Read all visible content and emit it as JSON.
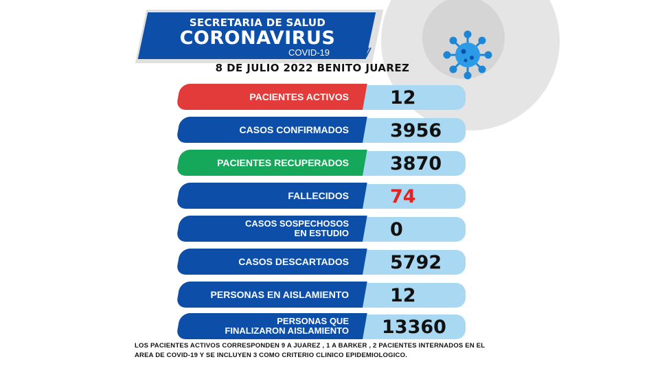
{
  "header": {
    "line1": "SECRETARIA DE SALUD",
    "line2": "CORONAVIRUS",
    "line3": "COVID-19",
    "stripes": "/////////",
    "date": "8  DE JULIO  2022  BENITO JUAREZ"
  },
  "stats": [
    {
      "label": "PACIENTES ACTIVOS",
      "value": "12"
    },
    {
      "label": "CASOS CONFIRMADOS",
      "value": "3956"
    },
    {
      "label": "PACIENTES RECUPERADOS",
      "value": "3870"
    },
    {
      "label": "FALLECIDOS",
      "value": "74"
    },
    {
      "label_line1": "CASOS SOSPECHOSOS",
      "label_line2": "EN ESTUDIO",
      "value": "0"
    },
    {
      "label": "CASOS DESCARTADOS",
      "value": "5792"
    },
    {
      "label": "PERSONAS EN AISLAMIENTO",
      "value": "12"
    },
    {
      "label_line1": "PERSONAS QUE",
      "label_line2": "FINALIZARON AISLAMIENTO",
      "value": "13360"
    }
  ],
  "footer": {
    "line1": "LOS  PACIENTES ACTIVOS  CORRESPONDEN  9  A JUAREZ , 1 A BARKER , 2 PACIENTES INTERNADOS EN EL",
    "line2": "AREA DE COVID-19  Y SE INCLUYEN 3 COMO CRITERIO CLINICO EPIDEMIOLOGICO."
  },
  "colors": {
    "blue": "#0d4ea8",
    "light_blue": "#a9d8f3",
    "red": "#e33a3a",
    "green": "#16a85a",
    "deaths_value": "#e32222"
  },
  "icons": [
    "coronavirus-icon"
  ]
}
